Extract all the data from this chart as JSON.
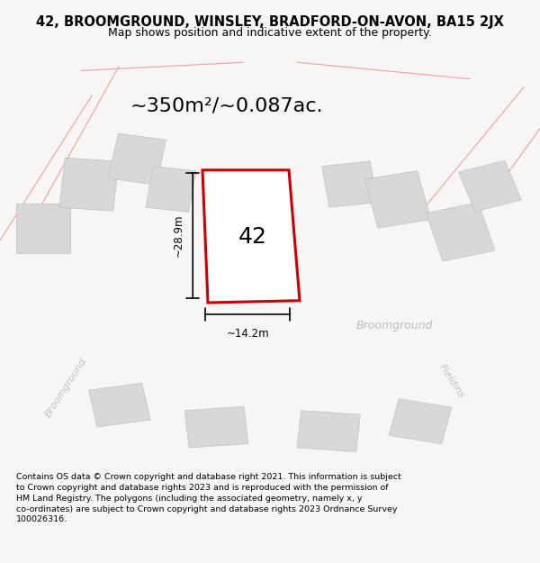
{
  "title_line1": "42, BROOMGROUND, WINSLEY, BRADFORD-ON-AVON, BA15 2JX",
  "title_line2": "Map shows position and indicative extent of the property.",
  "area_text": "~350m²/~0.087ac.",
  "number_label": "42",
  "width_label": "~14.2m",
  "height_label": "~28.9m",
  "footer_lines": [
    "Contains OS data © Crown copyright and database right 2021. This information is subject",
    "to Crown copyright and database rights 2023 and is reproduced with the permission of",
    "HM Land Registry. The polygons (including the associated geometry, namely x, y",
    "co-ordinates) are subject to Crown copyright and database rights 2023 Ordnance Survey",
    "100026316."
  ],
  "bg_color": "#f8f5f5",
  "map_bg": "#f9f6f6",
  "road_color": "#f0a0a0",
  "building_color": "#d8d8d8",
  "highlight_color": "#cc0000",
  "road_fill": "#f2e8e8",
  "street_label_color": "#b8b8b8",
  "title_fontsize": 10.5,
  "subtitle_fontsize": 9,
  "area_fontsize": 16,
  "number_fontsize": 18,
  "dim_fontsize": 8.5,
  "footer_fontsize": 6.8,
  "street_fontsize": 9
}
